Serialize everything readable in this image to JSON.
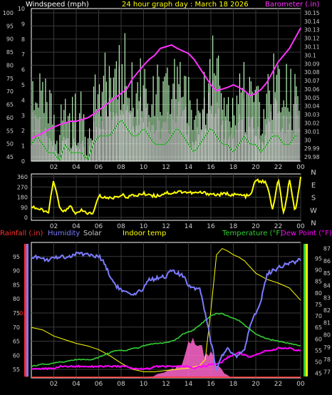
{
  "colors": {
    "background": "#000000",
    "grid": "#3a3a3a",
    "axis": "#ffffff",
    "wind": "#ffffff",
    "gust": "#b9f5b9",
    "wind_avg": "#28b428",
    "barometer": "#ff33ff",
    "title": "#ffff00",
    "direction": "#ffff00",
    "rain": "#ff3030",
    "humidity": "#7b7bff",
    "solar": "#c8c8c8",
    "indoor": "#ffff00",
    "temperature": "#33cc33",
    "dewpoint": "#ff00ff",
    "tick": "#cccccc"
  },
  "chart_data": [
    {
      "type": "line",
      "title": "24 hour graph day : March 18 2026",
      "legend_left": "Windspeed (mph)",
      "legend_right": "Barometer (.in)",
      "x_ticks": [
        "02",
        "04",
        "06",
        "08",
        "10",
        "12",
        "14",
        "16",
        "18",
        "20",
        "22",
        "00"
      ],
      "y_left_ticks": [
        "45",
        "50",
        "55",
        "60",
        "65",
        "70",
        "75",
        "80",
        "85",
        "90",
        "95",
        "100"
      ],
      "y_mid_ticks": [
        "0",
        "1",
        "2",
        "3",
        "4",
        "5",
        "6",
        "7",
        "8",
        "9",
        "10"
      ],
      "y_right_ticks": [
        "29.98",
        "29.99",
        "30",
        "30.01",
        "30.02",
        "30.03",
        "30.04",
        "30.05",
        "30.06",
        "30.07",
        "30.08",
        "30.09",
        "30.1",
        "30.11",
        "30.12",
        "30.13",
        "30.14",
        "30.15"
      ],
      "wind_ylim": [
        0,
        10
      ],
      "baro_ylim": [
        29.975,
        30.155
      ],
      "grid": true,
      "series": [
        {
          "name": "Windspeed (mph)",
          "x": [
            0.0,
            0.5,
            1.0,
            1.5,
            2.0,
            2.5,
            3.0,
            3.5,
            4.0,
            4.5,
            5.0,
            5.5,
            6.0,
            6.5,
            7.0,
            7.5,
            8.0,
            8.5,
            9.0,
            9.5,
            10.0,
            10.5,
            11.0,
            11.5,
            12.0,
            12.5,
            13.0,
            13.5,
            14.0,
            14.5,
            15.0,
            15.5,
            16.0,
            16.5,
            17.0,
            17.5,
            18.0,
            18.5,
            19.0,
            19.5,
            20.0,
            20.5,
            21.0,
            21.5,
            22.0,
            22.5,
            23.0,
            23.5
          ],
          "values": [
            2,
            3,
            2,
            1,
            1,
            0,
            2,
            1,
            1,
            1,
            0,
            2,
            3,
            3,
            3,
            4,
            5,
            4,
            3,
            3,
            4,
            3,
            2,
            2,
            2,
            3,
            4,
            3,
            2,
            1,
            2,
            3,
            4,
            3,
            2,
            2,
            1,
            2,
            3,
            2,
            2,
            1,
            2,
            3,
            3,
            2,
            2,
            3
          ]
        },
        {
          "name": "Barometer (.in)",
          "x": [
            0.0,
            0.5,
            1.0,
            1.5,
            2.0,
            2.5,
            3.0,
            3.5,
            4.0,
            4.5,
            5.0,
            5.5,
            6.0,
            6.5,
            7.0,
            7.5,
            8.0,
            8.5,
            9.0,
            9.5,
            10.0,
            10.5,
            11.0,
            11.5,
            12.0,
            12.5,
            13.0,
            13.5,
            14.0,
            14.5,
            15.0,
            15.5,
            16.0,
            16.5,
            17.0,
            17.5,
            18.0,
            18.5,
            19.0,
            19.5,
            20.0,
            20.5,
            21.0,
            21.5,
            22.0,
            22.5,
            23.0,
            23.5,
            24.0
          ],
          "values": [
            30.002,
            30.005,
            30.008,
            30.012,
            30.015,
            30.018,
            30.02,
            30.022,
            30.022,
            30.024,
            30.026,
            30.03,
            30.035,
            30.04,
            30.045,
            30.05,
            30.055,
            30.06,
            30.072,
            30.08,
            30.088,
            30.095,
            30.1,
            30.108,
            30.11,
            30.112,
            30.108,
            30.105,
            30.102,
            30.095,
            30.085,
            30.075,
            30.065,
            30.058,
            30.06,
            30.062,
            30.065,
            30.062,
            30.058,
            30.052,
            30.055,
            30.06,
            30.068,
            30.08,
            30.092,
            30.1,
            30.108,
            30.12,
            30.132
          ]
        }
      ]
    },
    {
      "type": "line",
      "title": "",
      "y_ticks": [
        "0",
        "90",
        "180",
        "270",
        "360"
      ],
      "compass_labels": [
        "N",
        "W",
        "S",
        "E",
        "N"
      ],
      "x_ticks": [
        "02",
        "04",
        "06",
        "08",
        "10",
        "12",
        "14",
        "16",
        "18",
        "20",
        "22",
        "00"
      ],
      "ylim": [
        0,
        360
      ],
      "grid": true,
      "series": [
        {
          "name": "Wind direction",
          "x": [
            0.0,
            0.5,
            1.0,
            1.5,
            2.0,
            2.5,
            3.0,
            3.5,
            4.0,
            4.5,
            5.0,
            5.5,
            6.0,
            6.5,
            7.0,
            7.5,
            8.0,
            8.5,
            9.0,
            9.5,
            10.0,
            10.5,
            11.0,
            11.5,
            12.0,
            12.5,
            13.0,
            13.5,
            14.0,
            14.5,
            15.0,
            15.5,
            16.0,
            16.5,
            17.0,
            17.5,
            18.0,
            18.5,
            19.0,
            19.5,
            20.0,
            20.5,
            21.0,
            21.5,
            22.0,
            22.5,
            23.0,
            23.5,
            24.0
          ],
          "values": [
            100,
            80,
            60,
            40,
            330,
            90,
            50,
            100,
            30,
            60,
            40,
            30,
            190,
            180,
            170,
            180,
            200,
            185,
            190,
            200,
            210,
            205,
            190,
            200,
            220,
            215,
            225,
            230,
            220,
            215,
            220,
            215,
            210,
            200,
            205,
            210,
            200,
            200,
            190,
            190,
            330,
            320,
            300,
            60,
            340,
            20,
            330,
            40,
            350
          ]
        }
      ]
    },
    {
      "type": "line",
      "title": "",
      "legend": [
        "Rainfall (.in)",
        "Humidity",
        "Solar",
        "Indoor temp",
        "Temperature (°F)",
        "Dew Point (°F)"
      ],
      "x_ticks": [
        "02",
        "04",
        "06",
        "08",
        "10",
        "12",
        "14",
        "16",
        "18",
        "20",
        "22",
        "00"
      ],
      "y_left_ticks": [
        "55",
        "60",
        "65",
        "70",
        "75",
        "80",
        "85",
        "90",
        "95"
      ],
      "y_rain_ticks": [
        "0",
        "0.1"
      ],
      "y_right_ticks": [
        "45",
        "50",
        "55",
        "60",
        "65",
        "70",
        "75",
        "80",
        "85",
        "90",
        "95"
      ],
      "y_far_right_ticks": [
        "77",
        "78",
        "79",
        "80",
        "81",
        "82",
        "83",
        "84",
        "85",
        "86",
        "87"
      ],
      "humidity_ylim": [
        52,
        100
      ],
      "temp_ylim": [
        43,
        102
      ],
      "indoor_ylim": [
        76.5,
        87.5
      ],
      "grid": true,
      "series": [
        {
          "name": "Humidity",
          "x": [
            0.0,
            0.5,
            1.0,
            1.5,
            2.0,
            2.5,
            3.0,
            3.5,
            4.0,
            4.5,
            5.0,
            5.5,
            6.0,
            6.5,
            7.0,
            7.5,
            8.0,
            8.5,
            9.0,
            9.5,
            10.0,
            10.5,
            11.0,
            11.5,
            12.0,
            12.5,
            13.0,
            13.5,
            14.0,
            14.5,
            15.0,
            15.5,
            16.0,
            16.5,
            17.0,
            17.5,
            18.0,
            18.5,
            19.0,
            19.5,
            20.0,
            20.5,
            21.0,
            21.5,
            22.0,
            22.5,
            23.0,
            23.5,
            24.0
          ],
          "values": [
            95,
            95,
            94,
            94,
            94,
            95,
            95,
            95,
            96,
            96,
            96,
            95,
            95,
            93,
            88,
            85,
            83,
            82,
            81,
            82,
            84,
            87,
            87,
            88,
            88,
            90,
            89,
            88,
            85,
            84,
            84,
            75,
            65,
            55,
            60,
            62,
            60,
            60,
            62,
            70,
            75,
            80,
            89,
            90,
            91,
            92,
            93,
            93,
            94
          ]
        },
        {
          "name": "Temperature (°F)",
          "x": [
            0.0,
            0.5,
            1.0,
            1.5,
            2.0,
            2.5,
            3.0,
            3.5,
            4.0,
            4.5,
            5.0,
            5.5,
            6.0,
            6.5,
            7.0,
            7.5,
            8.0,
            8.5,
            9.0,
            9.5,
            10.0,
            10.5,
            11.0,
            11.5,
            12.0,
            12.5,
            13.0,
            13.5,
            14.0,
            14.5,
            15.0,
            15.5,
            16.0,
            16.5,
            17.0,
            17.5,
            18.0,
            18.5,
            19.0,
            19.5,
            20.0,
            20.5,
            21.0,
            21.5,
            22.0,
            22.5,
            23.0,
            23.5,
            24.0
          ],
          "values": [
            48,
            48.5,
            49,
            49,
            49.5,
            50,
            50,
            50.5,
            51,
            51,
            51,
            51,
            52,
            53,
            54,
            55,
            55,
            55,
            56,
            56,
            57,
            57.5,
            58,
            58,
            58.5,
            59,
            60,
            62,
            63,
            64,
            66,
            68,
            70,
            71,
            71,
            70,
            69,
            68,
            66,
            64,
            62,
            61,
            60,
            59.5,
            59,
            58.5,
            58,
            57.5,
            57
          ]
        },
        {
          "name": "Dew Point (°F)",
          "x": [
            0.0,
            0.5,
            1.0,
            1.5,
            2.0,
            2.5,
            3.0,
            3.5,
            4.0,
            4.5,
            5.0,
            5.5,
            6.0,
            6.5,
            7.0,
            7.5,
            8.0,
            8.5,
            9.0,
            9.5,
            10.0,
            10.5,
            11.0,
            11.5,
            12.0,
            12.5,
            13.0,
            13.5,
            14.0,
            14.5,
            15.0,
            15.5,
            16.0,
            16.5,
            17.0,
            17.5,
            18.0,
            18.5,
            19.0,
            19.5,
            20.0,
            20.5,
            21.0,
            21.5,
            22.0,
            22.5,
            23.0,
            23.5,
            24.0
          ],
          "values": [
            47,
            47,
            47,
            47,
            47,
            48,
            48,
            48,
            48,
            48,
            48,
            48,
            48,
            48,
            48,
            48,
            48,
            48,
            47,
            47,
            47,
            47,
            48,
            48,
            48,
            48,
            48,
            48,
            48,
            47,
            48,
            48,
            49,
            49,
            50,
            52,
            53,
            54,
            53,
            52,
            53,
            54,
            55,
            55,
            56,
            56,
            56,
            55,
            55
          ]
        },
        {
          "name": "Indoor temp",
          "x": [
            0.0,
            1.0,
            2.0,
            3.0,
            4.0,
            5.0,
            6.0,
            7.0,
            8.0,
            9.0,
            10.0,
            11.0,
            12.0,
            13.0,
            14.0,
            15.0,
            15.5,
            16.0,
            16.5,
            17.0,
            17.5,
            18.0,
            18.5,
            19.0,
            20.0,
            21.0,
            22.0,
            23.0,
            24.0
          ],
          "values": [
            80.6,
            80.4,
            79.9,
            79.6,
            79.3,
            79.1,
            78.8,
            78.3,
            77.7,
            77.2,
            77.0,
            77.0,
            77.1,
            77.2,
            77.3,
            77.5,
            78.0,
            82.0,
            86.5,
            87.0,
            86.8,
            86.5,
            86.3,
            86.0,
            85.0,
            84.5,
            84.2,
            83.8,
            82.8
          ]
        },
        {
          "name": "Solar",
          "x": [
            0.0,
            9.0,
            9.5,
            10.0,
            10.5,
            11.0,
            11.5,
            12.0,
            12.5,
            13.0,
            13.5,
            14.0,
            14.5,
            15.0,
            15.5,
            16.0,
            16.5,
            17.0,
            17.5,
            18.0,
            24.0
          ],
          "values": [
            0,
            0,
            0,
            0.2,
            0.5,
            1,
            2,
            3,
            4,
            5,
            8,
            14,
            16,
            15,
            12,
            10,
            6,
            3,
            1,
            0,
            0
          ]
        },
        {
          "name": "Rainfall (.in)",
          "x": [
            0.0,
            24.0
          ],
          "values": [
            0,
            0
          ]
        }
      ]
    }
  ]
}
